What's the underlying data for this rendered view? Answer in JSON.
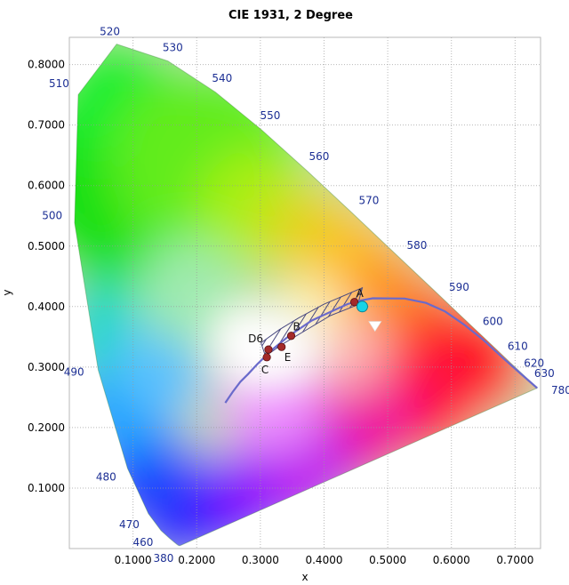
{
  "chart_data": {
    "type": "scatter",
    "title": "CIE 1931, 2 Degree",
    "xlabel": "x",
    "ylabel": "y",
    "xlim": [
      0.0,
      0.74
    ],
    "ylim": [
      0.0,
      0.845
    ],
    "x_ticks": [
      {
        "value": 0.1,
        "label": "0.1000"
      },
      {
        "value": 0.2,
        "label": "0.2000"
      },
      {
        "value": 0.3,
        "label": "0.3000"
      },
      {
        "value": 0.4,
        "label": "0.4000"
      },
      {
        "value": 0.5,
        "label": "0.5000"
      },
      {
        "value": 0.6,
        "label": "0.6000"
      },
      {
        "value": 0.7,
        "label": "0.7000"
      }
    ],
    "y_ticks": [
      {
        "value": 0.1,
        "label": "0.1000"
      },
      {
        "value": 0.2,
        "label": "0.2000"
      },
      {
        "value": 0.3,
        "label": "0.3000"
      },
      {
        "value": 0.4,
        "label": "0.4000"
      },
      {
        "value": 0.5,
        "label": "0.5000"
      },
      {
        "value": 0.6,
        "label": "0.6000"
      },
      {
        "value": 0.7,
        "label": "0.7000"
      },
      {
        "value": 0.8,
        "label": "0.8000"
      }
    ],
    "grid": true,
    "spectral_locus": [
      {
        "x": 0.1741,
        "y": 0.005
      },
      {
        "x": 0.1733,
        "y": 0.0048
      },
      {
        "x": 0.1726,
        "y": 0.0048
      },
      {
        "x": 0.1714,
        "y": 0.0051
      },
      {
        "x": 0.1689,
        "y": 0.0069
      },
      {
        "x": 0.1644,
        "y": 0.0109
      },
      {
        "x": 0.1566,
        "y": 0.0177
      },
      {
        "x": 0.144,
        "y": 0.0297
      },
      {
        "x": 0.1241,
        "y": 0.0578
      },
      {
        "x": 0.0913,
        "y": 0.1327
      },
      {
        "x": 0.0454,
        "y": 0.295
      },
      {
        "x": 0.0082,
        "y": 0.5384
      },
      {
        "x": 0.0139,
        "y": 0.7502
      },
      {
        "x": 0.0743,
        "y": 0.8338
      },
      {
        "x": 0.1547,
        "y": 0.8059
      },
      {
        "x": 0.2296,
        "y": 0.7543
      },
      {
        "x": 0.3016,
        "y": 0.6923
      },
      {
        "x": 0.3731,
        "y": 0.6245
      },
      {
        "x": 0.4441,
        "y": 0.5547
      },
      {
        "x": 0.5125,
        "y": 0.4866
      },
      {
        "x": 0.5752,
        "y": 0.4242
      },
      {
        "x": 0.627,
        "y": 0.3725
      },
      {
        "x": 0.6658,
        "y": 0.334
      },
      {
        "x": 0.6915,
        "y": 0.3083
      },
      {
        "x": 0.7079,
        "y": 0.292
      },
      {
        "x": 0.7347,
        "y": 0.2653
      }
    ],
    "wavelength_labels": [
      {
        "text": "380",
        "x": 0.1741,
        "y": 0.005,
        "anchor": "end"
      },
      {
        "text": "460",
        "x": 0.144,
        "y": 0.0297,
        "anchor": "end"
      },
      {
        "text": "470",
        "x": 0.1241,
        "y": 0.0578,
        "anchor": "end"
      },
      {
        "text": "480",
        "x": 0.0913,
        "y": 0.1327,
        "anchor": "end"
      },
      {
        "text": "490",
        "x": 0.0454,
        "y": 0.295,
        "anchor": "end"
      },
      {
        "text": "500",
        "x": 0.0082,
        "y": 0.5384,
        "anchor": "end"
      },
      {
        "text": "510",
        "x": 0.0139,
        "y": 0.7502,
        "anchor": "end"
      },
      {
        "text": "520",
        "x": 0.0743,
        "y": 0.8338,
        "anchor": "middle"
      },
      {
        "text": "530",
        "x": 0.1547,
        "y": 0.8059,
        "anchor": "start"
      },
      {
        "text": "540",
        "x": 0.2296,
        "y": 0.7543,
        "anchor": "start"
      },
      {
        "text": "550",
        "x": 0.3016,
        "y": 0.6923,
        "anchor": "start"
      },
      {
        "text": "560",
        "x": 0.3731,
        "y": 0.6245,
        "anchor": "start"
      },
      {
        "text": "570",
        "x": 0.4441,
        "y": 0.5547,
        "anchor": "start"
      },
      {
        "text": "580",
        "x": 0.5125,
        "y": 0.4866,
        "anchor": "start"
      },
      {
        "text": "590",
        "x": 0.5752,
        "y": 0.4242,
        "anchor": "start"
      },
      {
        "text": "600",
        "x": 0.627,
        "y": 0.3725,
        "anchor": "start"
      },
      {
        "text": "610",
        "x": 0.6658,
        "y": 0.334,
        "anchor": "start"
      },
      {
        "text": "620",
        "x": 0.6915,
        "y": 0.3083,
        "anchor": "start"
      },
      {
        "text": "630",
        "x": 0.7079,
        "y": 0.292,
        "anchor": "start"
      },
      {
        "text": "780",
        "x": 0.7347,
        "y": 0.2653,
        "anchor": "start"
      }
    ],
    "planckian_locus": {
      "color": "#6a6acb",
      "points": [
        {
          "x": 0.2449,
          "y": 0.2408
        },
        {
          "x": 0.2565,
          "y": 0.2588
        },
        {
          "x": 0.2685,
          "y": 0.2755
        },
        {
          "x": 0.2806,
          "y": 0.2883
        },
        {
          "x": 0.2952,
          "y": 0.3048
        },
        {
          "x": 0.3135,
          "y": 0.3236
        },
        {
          "x": 0.3221,
          "y": 0.3318
        },
        {
          "x": 0.3451,
          "y": 0.3516
        },
        {
          "x": 0.3805,
          "y": 0.3768
        },
        {
          "x": 0.4369,
          "y": 0.4041
        },
        {
          "x": 0.4578,
          "y": 0.4101
        },
        {
          "x": 0.4765,
          "y": 0.4137
        },
        {
          "x": 0.5267,
          "y": 0.4133
        },
        {
          "x": 0.56,
          "y": 0.406
        },
        {
          "x": 0.59,
          "y": 0.392
        },
        {
          "x": 0.62,
          "y": 0.37
        },
        {
          "x": 0.65,
          "y": 0.345
        },
        {
          "x": 0.68,
          "y": 0.316
        },
        {
          "x": 0.71,
          "y": 0.288
        },
        {
          "x": 0.7347,
          "y": 0.2653
        }
      ]
    },
    "tolerance_band": {
      "hatch_color": "#4a4a80",
      "upper": [
        {
          "x": 0.301,
          "y": 0.34
        },
        {
          "x": 0.33,
          "y": 0.362
        },
        {
          "x": 0.36,
          "y": 0.381
        },
        {
          "x": 0.4,
          "y": 0.404
        },
        {
          "x": 0.46,
          "y": 0.431
        }
      ],
      "lower": [
        {
          "x": 0.308,
          "y": 0.318
        },
        {
          "x": 0.335,
          "y": 0.338
        },
        {
          "x": 0.37,
          "y": 0.36
        },
        {
          "x": 0.41,
          "y": 0.385
        },
        {
          "x": 0.453,
          "y": 0.403
        }
      ]
    },
    "points": [
      {
        "label": "A",
        "x": 0.4476,
        "y": 0.4074,
        "color": "#a42a2a",
        "label_dx": 2,
        "label_dy": -6,
        "anchor": "start"
      },
      {
        "label": "B",
        "x": 0.3484,
        "y": 0.3516,
        "color": "#a42a2a",
        "label_dx": 2,
        "label_dy": -6,
        "anchor": "start"
      },
      {
        "label": "C",
        "x": 0.3101,
        "y": 0.3162,
        "color": "#a42a2a",
        "label_dx": -2,
        "label_dy": 18,
        "anchor": "middle"
      },
      {
        "label": "D6",
        "x": 0.3127,
        "y": 0.329,
        "color": "#a42a2a",
        "label_dx": -6,
        "label_dy": -8,
        "anchor": "end"
      },
      {
        "label": "E",
        "x": 0.3333,
        "y": 0.3333,
        "color": "#a42a2a",
        "label_dx": 3,
        "label_dy": 16,
        "anchor": "start"
      }
    ],
    "measurement_marker": {
      "x": 0.46,
      "y": 0.4,
      "color": "#19d3e6",
      "shape": "circle"
    },
    "dominant_marker": {
      "x": 0.48,
      "y": 0.368,
      "color": "#ffffff",
      "shape": "triangle-down"
    }
  }
}
